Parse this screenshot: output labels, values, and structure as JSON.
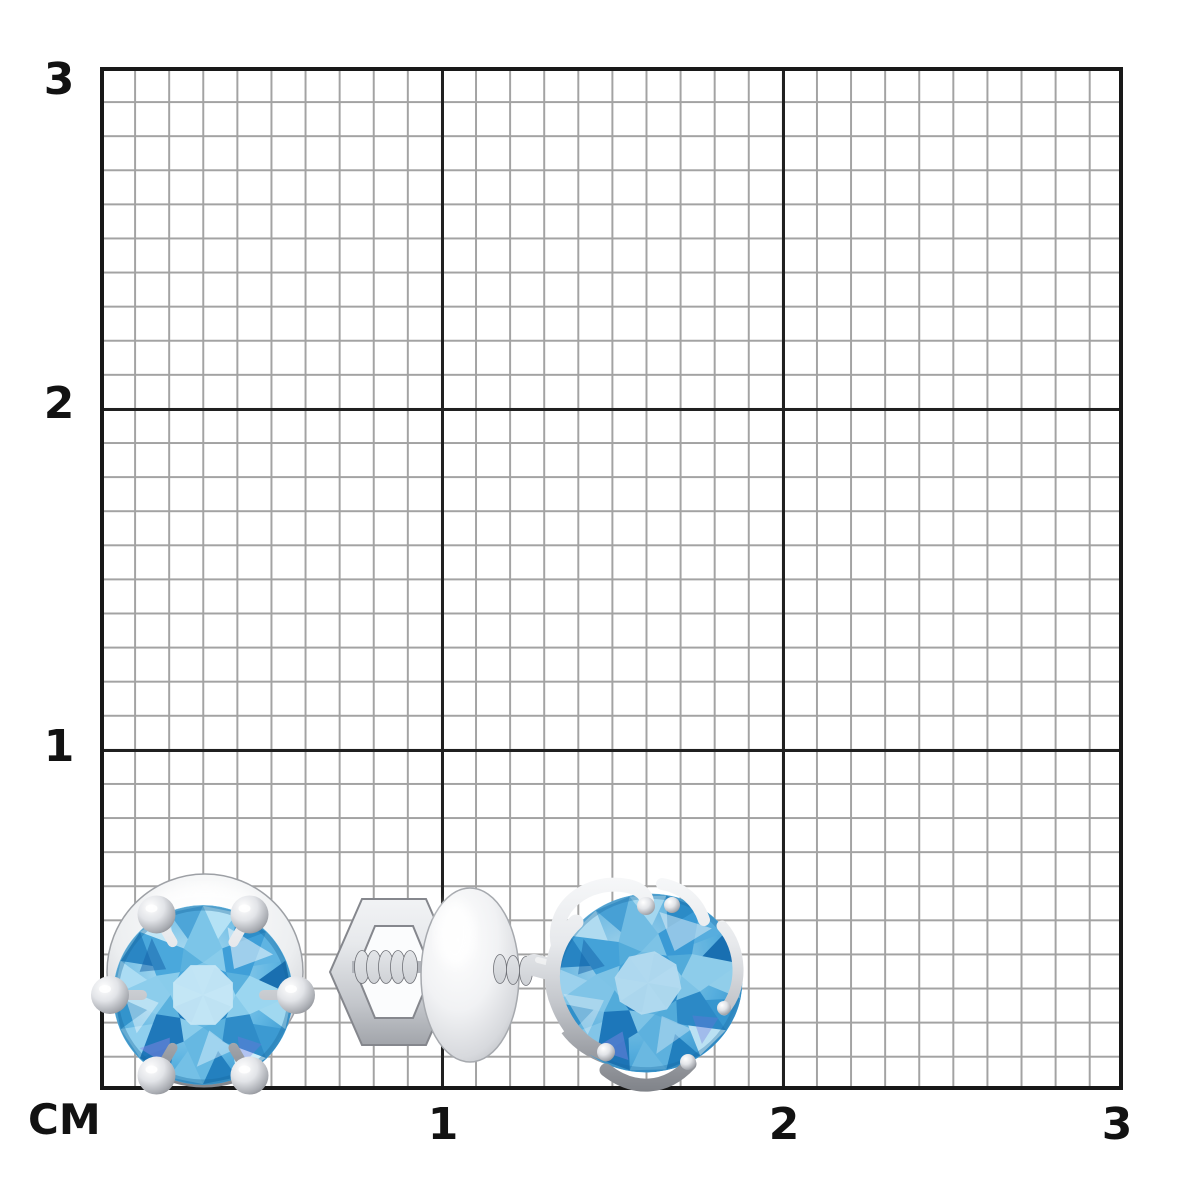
{
  "ruler": {
    "unit_label": "CM",
    "y_axis_labels": [
      "3",
      "2",
      "1"
    ],
    "x_axis_labels": [
      "1",
      "2",
      "3"
    ],
    "range_cm": [
      0,
      3
    ],
    "major_step_cm": 1,
    "minor_step_cm": 0.1
  },
  "colors": {
    "background": "#ffffff",
    "grid_major_line": "#202020",
    "grid_minor_line": "#a3a3a3",
    "axis_label": "#121212",
    "gem_blue": "#55b0e0",
    "metal_silver": "#d9dbe0"
  },
  "items": [
    {
      "name": "stud-earring-front-view",
      "description": "Round light-blue gemstone stud earring in a six-prong silver setting, front view, spanning about 0.6 cm on the grid"
    },
    {
      "name": "screw-back-clasp",
      "description": "Silver screw-back earring clasp with open hexagonal nut, threaded screw post and round domed disc, side view"
    },
    {
      "name": "stud-earring-side-view",
      "description": "Round light-blue gemstone stud earring with claw prongs and threaded post, side view"
    }
  ]
}
